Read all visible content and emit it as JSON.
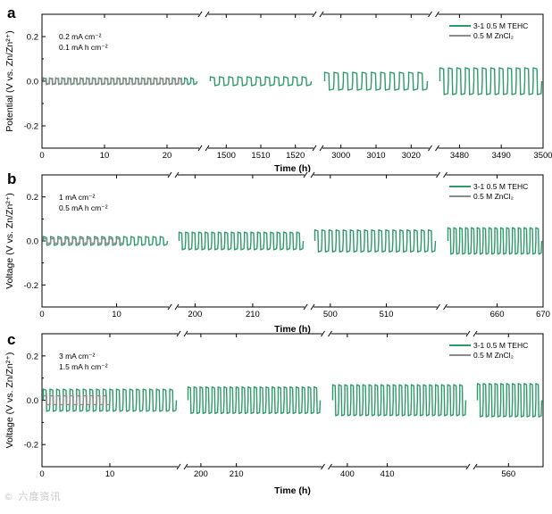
{
  "watermark": "© 六度资讯",
  "colors": {
    "teh": "#2e9a6a",
    "zncl": "#8c8c8c",
    "axis": "#000000"
  },
  "chart_data": [
    {
      "type": "line",
      "panel_label": "a",
      "ylabel": "Potential (V vs. Zn/Zn²⁺)",
      "xlabel": "Time (h)",
      "ylim": [
        -0.3,
        0.3
      ],
      "yticks": [
        "0.2",
        "0.0",
        "-0.2"
      ],
      "y_values": [
        0.2,
        0.0,
        -0.2
      ],
      "annotations": [
        "0.2 mA cm⁻²",
        "0.1 mA h cm⁻²"
      ],
      "legend": [
        "3-1 0.5 M TEHC",
        "0.5 M ZnCl₂"
      ],
      "series_amplitude": {
        "teh": [
          0.015,
          0.02,
          0.04,
          0.06
        ],
        "zncl": 0.012
      },
      "segments": [
        {
          "xlim": [
            0,
            25
          ],
          "ticks": [
            0,
            10,
            20
          ],
          "tick_labels": [
            "0",
            "10",
            "20"
          ],
          "cycles": 25,
          "zncl_cycles": 23
        },
        {
          "xlim": [
            1495,
            1525
          ],
          "ticks": [
            1500,
            1510,
            1520
          ],
          "tick_labels": [
            "1500",
            "1510",
            "1520"
          ],
          "cycles": 11,
          "zncl_cycles": 0
        },
        {
          "xlim": [
            2995,
            3025
          ],
          "ticks": [
            3000,
            3010,
            3020
          ],
          "tick_labels": [
            "3000",
            "3010",
            "3020"
          ],
          "cycles": 11,
          "zncl_cycles": 0
        },
        {
          "xlim": [
            3475,
            3500
          ],
          "ticks": [
            3480,
            3490,
            3500
          ],
          "tick_labels": [
            "3480",
            "3490",
            "3500"
          ],
          "cycles": 12,
          "zncl_cycles": 0
        }
      ]
    },
    {
      "type": "line",
      "panel_label": "b",
      "ylabel": "Voltage (V vs. Zn/Zn²⁺)",
      "xlabel": "Time (h)",
      "ylim": [
        -0.3,
        0.3
      ],
      "yticks": [
        "0.2",
        "0.0",
        "-0.2"
      ],
      "y_values": [
        0.2,
        0.0,
        -0.2
      ],
      "annotations": [
        "1 mA cm⁻²",
        "0.5 mA h cm⁻²"
      ],
      "legend": [
        "3-1 0.5 M TEHC",
        "0.5 M ZnCl₂"
      ],
      "series_amplitude": {
        "teh": [
          0.02,
          0.04,
          0.05,
          0.06
        ],
        "zncl": 0.01
      },
      "segments": [
        {
          "xlim": [
            0,
            17
          ],
          "ticks": [
            0,
            10
          ],
          "tick_labels": [
            "0",
            "10"
          ],
          "cycles": 17,
          "zncl_cycles": 11
        },
        {
          "xlim": [
            197,
            219
          ],
          "ticks": [
            200,
            210
          ],
          "tick_labels": [
            "200",
            "210"
          ],
          "cycles": 19,
          "zncl_cycles": 0
        },
        {
          "xlim": [
            497,
            519
          ],
          "ticks": [
            500,
            510
          ],
          "tick_labels": [
            "500",
            "510"
          ],
          "cycles": 17,
          "zncl_cycles": 0
        },
        {
          "xlim": [
            649,
            670
          ],
          "ticks": [
            660,
            670
          ],
          "tick_labels": [
            "660",
            "670"
          ],
          "cycles": 16,
          "zncl_cycles": 0
        }
      ]
    },
    {
      "type": "line",
      "panel_label": "c",
      "ylabel": "Voltage (V vs. Zn/Zn²⁺)",
      "xlabel": "Time (h)",
      "ylim": [
        -0.3,
        0.3
      ],
      "yticks": [
        "0.2",
        "0.0",
        "-0.2"
      ],
      "y_values": [
        0.2,
        0.0,
        -0.2
      ],
      "annotations": [
        "3 mA cm⁻²",
        "1.5 mA h cm⁻²"
      ],
      "legend": [
        "3-1 0.5 M TEHC",
        "0.5 M ZnCl₂"
      ],
      "series_amplitude": {
        "teh": [
          0.05,
          0.06,
          0.07,
          0.075
        ],
        "zncl": 0.02
      },
      "segments": [
        {
          "xlim": [
            0,
            20
          ],
          "ticks": [
            0,
            10
          ],
          "tick_labels": [
            "0",
            "10"
          ],
          "cycles": 20,
          "zncl_cycles": 10
        },
        {
          "xlim": [
            196,
            234
          ],
          "ticks": [
            200,
            210
          ],
          "tick_labels": [
            "200",
            "210"
          ],
          "cycles": 22,
          "zncl_cycles": 0
        },
        {
          "xlim": [
            396,
            430
          ],
          "ticks": [
            400,
            410
          ],
          "tick_labels": [
            "400",
            "410"
          ],
          "cycles": 22,
          "zncl_cycles": 0
        },
        {
          "xlim": [
            545,
            576
          ],
          "ticks": [
            560
          ],
          "tick_labels": [
            "560"
          ],
          "cycles": 11,
          "zncl_cycles": 0
        }
      ]
    }
  ]
}
